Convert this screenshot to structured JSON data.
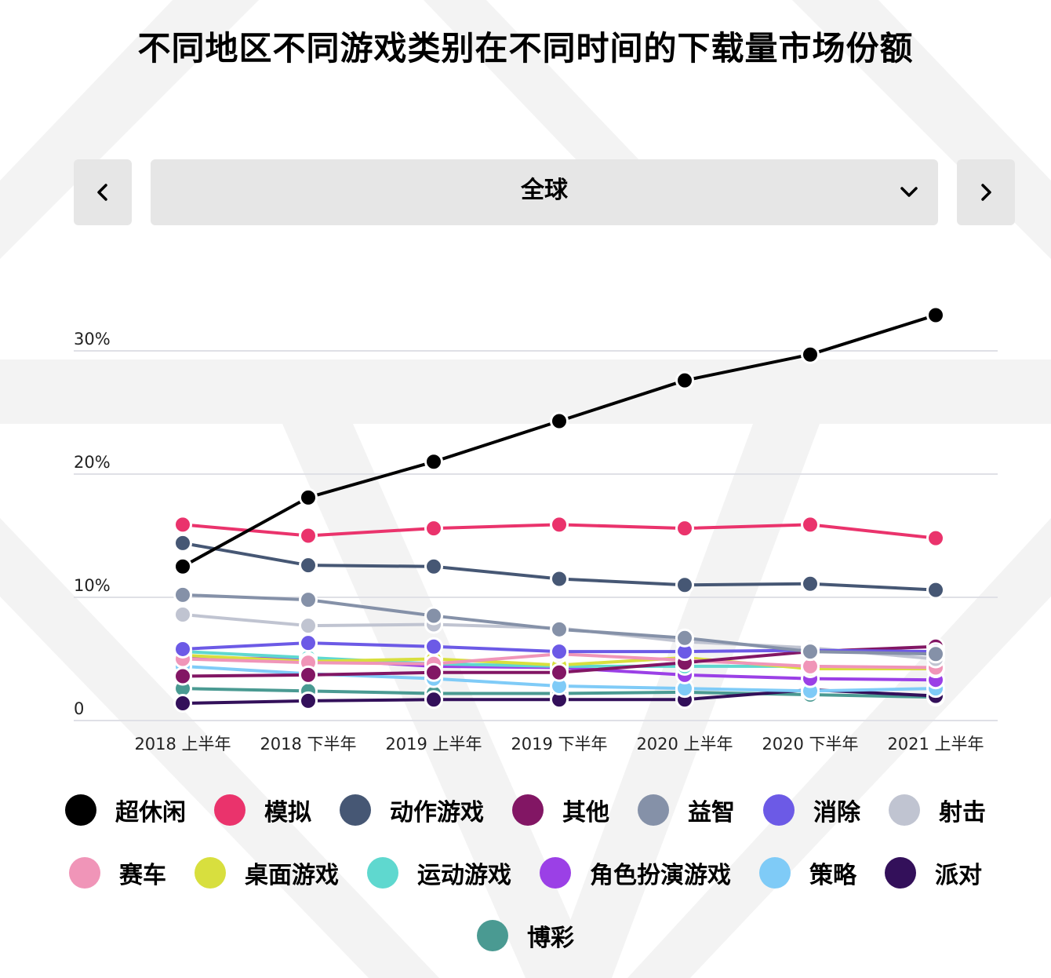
{
  "title": "不同地区不同游戏类别在不同时间的下载量市场份额",
  "controls": {
    "prev_icon": "chevron-left-icon",
    "next_icon": "chevron-right-icon",
    "dropdown_icon": "chevron-down-icon",
    "region_selected": "全球"
  },
  "chart_data": {
    "type": "line",
    "title": "不同地区不同游戏类别在不同时间的下载量市场份额",
    "x": [
      "2018 上半年",
      "2018 下半年",
      "2019 上半年",
      "2019 下半年",
      "2020 上半年",
      "2020 下半年",
      "2021 上半年"
    ],
    "y_ticks": [
      "0",
      "10%",
      "20%",
      "30%"
    ],
    "ylim": [
      0,
      34
    ],
    "grid": true,
    "legend_placement": "bottom",
    "series": [
      {
        "name": "博彩",
        "color": "#4a9a92",
        "values": [
          2.6,
          2.4,
          2.2,
          2.2,
          2.3,
          2.1,
          1.9
        ]
      },
      {
        "name": "派对",
        "color": "#33105a",
        "values": [
          1.4,
          1.6,
          1.7,
          1.7,
          1.7,
          2.5,
          2.0
        ]
      },
      {
        "name": "策略",
        "color": "#7fcbf7",
        "values": [
          4.4,
          3.8,
          3.4,
          2.8,
          2.6,
          2.4,
          2.6
        ]
      },
      {
        "name": "角色扮演游戏",
        "color": "#9b40e6",
        "values": [
          5.1,
          5.0,
          4.4,
          4.3,
          3.7,
          3.4,
          3.3
        ]
      },
      {
        "name": "运动游戏",
        "color": "#5fd8cf",
        "values": [
          5.6,
          5.1,
          4.6,
          4.4,
          4.4,
          4.4,
          4.2
        ]
      },
      {
        "name": "桌面游戏",
        "color": "#d8df3e",
        "values": [
          5.3,
          4.8,
          5.0,
          4.5,
          5.1,
          4.2,
          4.2
        ]
      },
      {
        "name": "赛车",
        "color": "#f095b8",
        "values": [
          5.0,
          4.7,
          4.6,
          5.4,
          4.9,
          4.4,
          4.3
        ]
      },
      {
        "name": "其他",
        "color": "#821664",
        "values": [
          3.6,
          3.7,
          3.9,
          3.9,
          4.7,
          5.6,
          6.0
        ]
      },
      {
        "name": "射击",
        "color": "#c0c4d1",
        "values": [
          8.6,
          7.7,
          7.8,
          7.5,
          6.4,
          5.9,
          5.0
        ]
      },
      {
        "name": "消除",
        "color": "#6c5ae6",
        "values": [
          5.8,
          6.3,
          6.0,
          5.6,
          5.6,
          5.7,
          5.6
        ]
      },
      {
        "name": "益智",
        "color": "#8591a8",
        "values": [
          10.2,
          9.8,
          8.5,
          7.4,
          6.7,
          5.6,
          5.4
        ]
      },
      {
        "name": "动作游戏",
        "color": "#465774",
        "values": [
          14.4,
          12.6,
          12.5,
          11.5,
          11.0,
          11.1,
          10.6
        ]
      },
      {
        "name": "模拟",
        "color": "#ea336c",
        "values": [
          15.9,
          15.0,
          15.6,
          15.9,
          15.6,
          15.9,
          14.8
        ]
      },
      {
        "name": "超休闲",
        "color": "#000000",
        "values": [
          12.5,
          18.1,
          21.0,
          24.3,
          27.6,
          29.7,
          32.9
        ]
      }
    ]
  },
  "legend": [
    {
      "name": "超休闲",
      "color": "#000000"
    },
    {
      "name": "模拟",
      "color": "#ea336c"
    },
    {
      "name": "动作游戏",
      "color": "#465774"
    },
    {
      "name": "其他",
      "color": "#821664"
    },
    {
      "name": "益智",
      "color": "#8591a8"
    },
    {
      "name": "消除",
      "color": "#6c5ae6"
    },
    {
      "name": "射击",
      "color": "#c0c4d1"
    },
    {
      "name": "赛车",
      "color": "#f095b8"
    },
    {
      "name": "桌面游戏",
      "color": "#d8df3e"
    },
    {
      "name": "运动游戏",
      "color": "#5fd8cf"
    },
    {
      "name": "角色扮演游戏",
      "color": "#9b40e6"
    },
    {
      "name": "策略",
      "color": "#7fcbf7"
    },
    {
      "name": "派对",
      "color": "#33105a"
    },
    {
      "name": "博彩",
      "color": "#4a9a92"
    }
  ]
}
